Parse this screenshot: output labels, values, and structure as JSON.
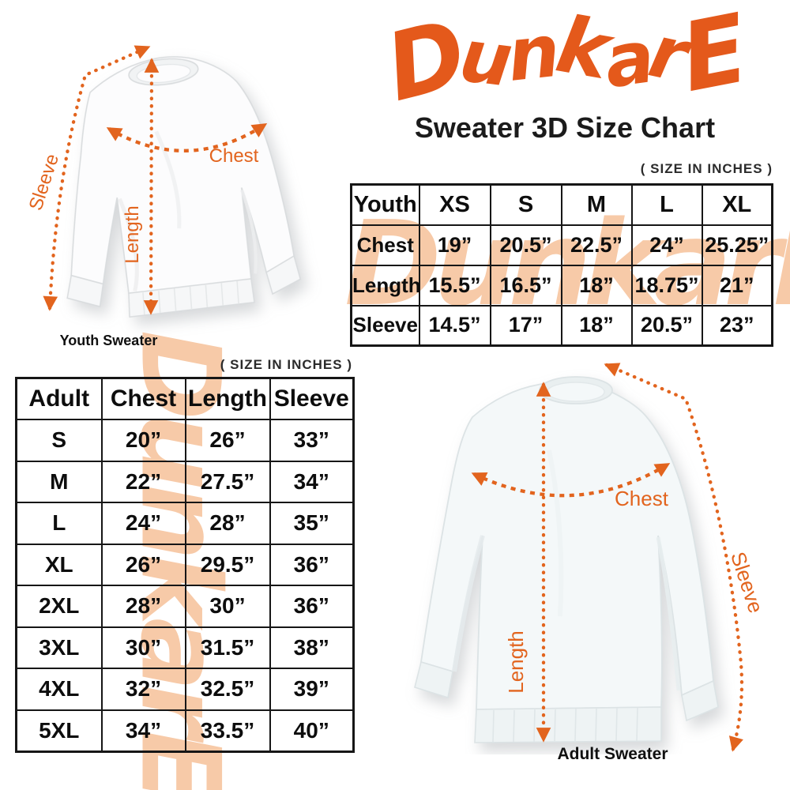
{
  "brand": {
    "logo_text": "DunkarE"
  },
  "header": {
    "title": "Sweater 3D Size Chart"
  },
  "youth_diagram": {
    "caption": "Youth Sweater",
    "sleeve_label": "Sleeve",
    "length_label": "Length",
    "chest_label": "Chest"
  },
  "adult_diagram": {
    "caption": "Adult Sweater",
    "sleeve_label": "Sleeve",
    "length_label": "Length",
    "chest_label": "Chest"
  },
  "youth_table": {
    "size_note": "( SIZE IN INCHES )",
    "corner": "Youth",
    "columns": [
      "XS",
      "S",
      "M",
      "L",
      "XL"
    ],
    "rows": [
      {
        "label": "Chest",
        "values": [
          "19”",
          "20.5”",
          "22.5”",
          "24”",
          "25.25”"
        ]
      },
      {
        "label": "Length",
        "values": [
          "15.5”",
          "16.5”",
          "18”",
          "18.75”",
          "21”"
        ]
      },
      {
        "label": "Sleeve",
        "values": [
          "14.5”",
          "17”",
          "18”",
          "20.5”",
          "23”"
        ]
      }
    ]
  },
  "adult_table": {
    "size_note": "( SIZE IN INCHES )",
    "headers": [
      "Adult",
      "Chest",
      "Length",
      "Sleeve"
    ],
    "rows": [
      {
        "size": "S",
        "chest": "20”",
        "length": "26”",
        "sleeve": "33”"
      },
      {
        "size": "M",
        "chest": "22”",
        "length": "27.5”",
        "sleeve": "34”"
      },
      {
        "size": "L",
        "chest": "24”",
        "length": "28”",
        "sleeve": "35”"
      },
      {
        "size": "XL",
        "chest": "26”",
        "length": "29.5”",
        "sleeve": "36”"
      },
      {
        "size": "2XL",
        "chest": "28”",
        "length": "30”",
        "sleeve": "36”"
      },
      {
        "size": "3XL",
        "chest": "30”",
        "length": "31.5”",
        "sleeve": "38”"
      },
      {
        "size": "4XL",
        "chest": "32”",
        "length": "32.5”",
        "sleeve": "39”"
      },
      {
        "size": "5XL",
        "chest": "34”",
        "length": "33.5”",
        "sleeve": "40”"
      }
    ]
  },
  "colors": {
    "accent_orange": "#E4591B",
    "measure_orange": "#E2641E",
    "watermark_peach": "#F7CAA8",
    "table_border": "#161616"
  }
}
